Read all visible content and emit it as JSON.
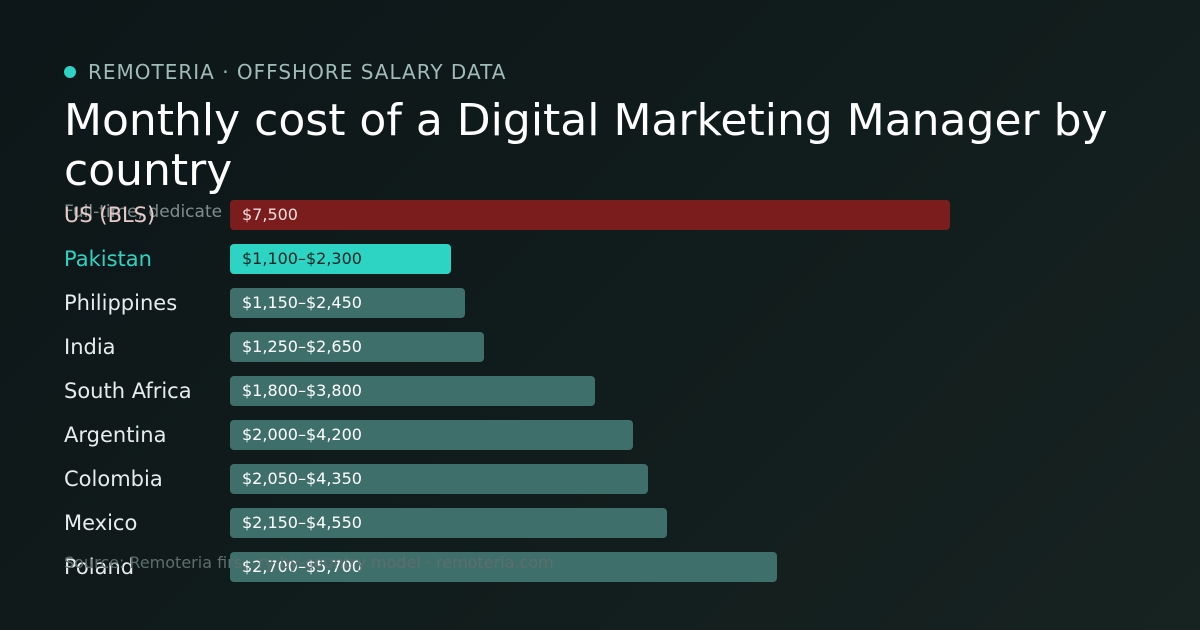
{
  "header": {
    "brand": "REMOTERIA · OFFSHORE SALARY DATA",
    "title": "Monthly cost of a Digital Marketing Manager by country",
    "subtitle": "Full-time, dedicate"
  },
  "footer": {
    "source": "Source: Remoteria firs…ry-by-country model · remoteria.com"
  },
  "colors": {
    "accent": "#2dd4c4",
    "reference": "#7c1d1d",
    "default": "#3f6f6b",
    "highlight_label": "#2dd4c4"
  },
  "chart_data": {
    "type": "bar",
    "orientation": "horizontal",
    "title": "Monthly cost of a Digital Marketing Manager by country",
    "unit": "USD / month",
    "xlim": [
      0,
      7500
    ],
    "grid": false,
    "categories": [
      "US (BLS)",
      "Pakistan",
      "Philippines",
      "India",
      "South Africa",
      "Argentina",
      "Colombia",
      "Mexico",
      "Poland"
    ],
    "bars": [
      {
        "category": "US (BLS)",
        "value": 7500,
        "label": "$7,500",
        "style": "reference"
      },
      {
        "category": "Pakistan",
        "low": 1100,
        "high": 2300,
        "label": "$1,100–$2,300",
        "style": "highlight"
      },
      {
        "category": "Philippines",
        "low": 1150,
        "high": 2450,
        "label": "$1,150–$2,450",
        "style": "default"
      },
      {
        "category": "India",
        "low": 1250,
        "high": 2650,
        "label": "$1,250–$2,650",
        "style": "default"
      },
      {
        "category": "South Africa",
        "low": 1800,
        "high": 3800,
        "label": "$1,800–$3,800",
        "style": "default"
      },
      {
        "category": "Argentina",
        "low": 2000,
        "high": 4200,
        "label": "$2,000–$4,200",
        "style": "default"
      },
      {
        "category": "Colombia",
        "low": 2050,
        "high": 4350,
        "label": "$2,050–$4,350",
        "style": "default"
      },
      {
        "category": "Mexico",
        "low": 2150,
        "high": 4550,
        "label": "$2,150–$4,550",
        "style": "default"
      },
      {
        "category": "Poland",
        "low": 2700,
        "high": 5700,
        "label": "$2,700–$5,700",
        "style": "default"
      }
    ]
  }
}
